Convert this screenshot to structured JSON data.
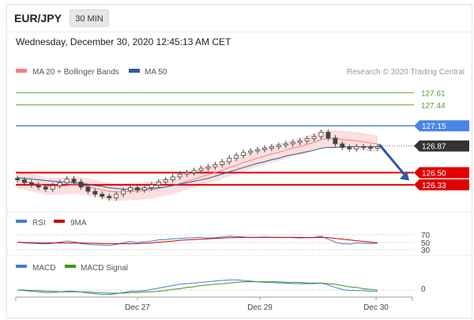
{
  "header": {
    "symbol": "EUR/JPY",
    "timeframe": "30 MIN",
    "timestamp": "Wednesday, December 30, 2020 12:45:13 AM CET"
  },
  "legend": {
    "ma20_label": "MA 20 + Bollinger Bands",
    "ma20_color": "#f08080",
    "ma50_label": "MA 50",
    "ma50_color": "#2c5b9e",
    "credit": "Research © 2020 Trading Central"
  },
  "colors": {
    "candle": "#444444",
    "band_fill": "#fbd9d9",
    "resistance_green": "#5aa02c",
    "pivot_blue": "#4a86e8",
    "support_red": "#e00000",
    "current_price_bg": "#333333",
    "rsi_line": "#4a7bd0",
    "rsi_ma_line": "#cc0000",
    "macd_line": "#4a7bd0",
    "macd_signal_line": "#3a9a1a",
    "arrow": "#2a5aa0"
  },
  "chart_data": [
    {
      "type": "candlestick",
      "name": "price",
      "y_range": [
        126.0,
        127.8
      ],
      "x_ticks": [
        "Dec 27",
        "Dec 29",
        "Dec 30"
      ],
      "closes": [
        126.4,
        126.36,
        126.33,
        126.3,
        126.27,
        126.32,
        126.36,
        126.41,
        126.37,
        126.3,
        126.24,
        126.2,
        126.17,
        126.15,
        126.2,
        126.25,
        126.29,
        126.26,
        126.29,
        126.33,
        126.37,
        126.4,
        126.44,
        126.48,
        126.5,
        126.53,
        126.56,
        126.58,
        126.61,
        126.65,
        126.7,
        126.74,
        126.78,
        126.8,
        126.82,
        126.84,
        126.86,
        126.88,
        126.9,
        126.92,
        126.94,
        126.97,
        127.0,
        127.06,
        126.98,
        126.9,
        126.85,
        126.83,
        126.86,
        126.85,
        126.84,
        126.86
      ],
      "levels": {
        "resistance": [
          127.61,
          127.44,
          127.15
        ],
        "current": 126.87,
        "support": [
          126.5,
          126.33
        ]
      },
      "level_labels": [
        "127.61",
        "127.44",
        "127.15",
        "126.87",
        "126.50",
        "126.33"
      ],
      "series": [
        {
          "name": "MA 20 + Bollinger Bands",
          "values": [
            126.4,
            126.38,
            126.36,
            126.34,
            126.31,
            126.31,
            126.31,
            126.32,
            126.33,
            126.32,
            126.3,
            126.28,
            126.26,
            126.24,
            126.23,
            126.23,
            126.24,
            126.24,
            126.25,
            126.26,
            126.28,
            126.3,
            126.32,
            126.35,
            126.38,
            126.41,
            126.44,
            126.47,
            126.5,
            126.53,
            126.57,
            126.6,
            126.64,
            126.67,
            126.7,
            126.73,
            126.76,
            126.78,
            126.81,
            126.84,
            126.86,
            126.89,
            126.92,
            126.96,
            126.97,
            126.97,
            126.96,
            126.95,
            126.94,
            126.93,
            126.91,
            126.9
          ]
        },
        {
          "name": "MA 50",
          "values": [
            126.43,
            126.42,
            126.41,
            126.4,
            126.39,
            126.38,
            126.37,
            126.37,
            126.36,
            126.35,
            126.34,
            126.32,
            126.31,
            126.29,
            126.28,
            126.27,
            126.27,
            126.27,
            126.27,
            126.28,
            126.29,
            126.3,
            126.32,
            126.34,
            126.36,
            126.38,
            126.4,
            126.42,
            126.45,
            126.48,
            126.51,
            126.54,
            126.57,
            126.6,
            126.63,
            126.65,
            126.68,
            126.7,
            126.73,
            126.75,
            126.77,
            126.79,
            126.81,
            126.84,
            126.85,
            126.85,
            126.86,
            126.86,
            126.86,
            126.86,
            126.86,
            126.86
          ]
        }
      ],
      "band_width": 0.12
    },
    {
      "type": "line",
      "name": "RSI",
      "y_ticks": [
        70,
        50,
        30
      ],
      "series": [
        {
          "name": "RSI",
          "values": [
            50,
            48,
            47,
            46,
            45,
            47,
            50,
            53,
            51,
            46,
            44,
            43,
            42,
            41,
            44,
            48,
            52,
            49,
            51,
            53,
            56,
            57,
            59,
            60,
            61,
            62,
            63,
            61,
            62,
            64,
            66,
            65,
            64,
            62,
            63,
            64,
            63,
            62,
            63,
            62,
            61,
            62,
            63,
            66,
            58,
            50,
            46,
            45,
            48,
            47,
            46,
            48
          ]
        },
        {
          "name": "9MA",
          "values": [
            50,
            49,
            49,
            48,
            48,
            48,
            48,
            48,
            48,
            48,
            47,
            47,
            46,
            46,
            46,
            46,
            46,
            46,
            47,
            48,
            50,
            51,
            53,
            55,
            56,
            57,
            58,
            59,
            60,
            61,
            62,
            62,
            63,
            63,
            63,
            63,
            63,
            63,
            63,
            63,
            63,
            62,
            62,
            63,
            62,
            60,
            58,
            56,
            54,
            52,
            50,
            48
          ]
        }
      ]
    },
    {
      "type": "line",
      "name": "MACD",
      "y_ticks": [
        0
      ],
      "series": [
        {
          "name": "MACD",
          "values": [
            0.0,
            -0.01,
            -0.02,
            -0.03,
            -0.04,
            -0.04,
            -0.03,
            -0.02,
            -0.02,
            -0.03,
            -0.05,
            -0.06,
            -0.07,
            -0.07,
            -0.06,
            -0.04,
            -0.02,
            -0.02,
            -0.01,
            0.01,
            0.03,
            0.05,
            0.07,
            0.09,
            0.1,
            0.11,
            0.12,
            0.13,
            0.14,
            0.15,
            0.16,
            0.16,
            0.15,
            0.14,
            0.13,
            0.12,
            0.12,
            0.11,
            0.11,
            0.1,
            0.1,
            0.1,
            0.1,
            0.11,
            0.08,
            0.04,
            0.01,
            -0.01,
            -0.01,
            -0.01,
            -0.02,
            -0.02
          ]
        },
        {
          "name": "MACD Signal",
          "values": [
            0.0,
            0.0,
            -0.01,
            -0.01,
            -0.02,
            -0.02,
            -0.03,
            -0.03,
            -0.03,
            -0.03,
            -0.03,
            -0.04,
            -0.04,
            -0.05,
            -0.05,
            -0.05,
            -0.04,
            -0.04,
            -0.03,
            -0.03,
            -0.02,
            -0.01,
            0.01,
            0.02,
            0.04,
            0.05,
            0.07,
            0.08,
            0.09,
            0.1,
            0.11,
            0.12,
            0.13,
            0.13,
            0.13,
            0.13,
            0.13,
            0.13,
            0.12,
            0.12,
            0.12,
            0.11,
            0.11,
            0.11,
            0.1,
            0.09,
            0.07,
            0.05,
            0.04,
            0.02,
            0.01,
            0.0
          ]
        }
      ]
    }
  ]
}
